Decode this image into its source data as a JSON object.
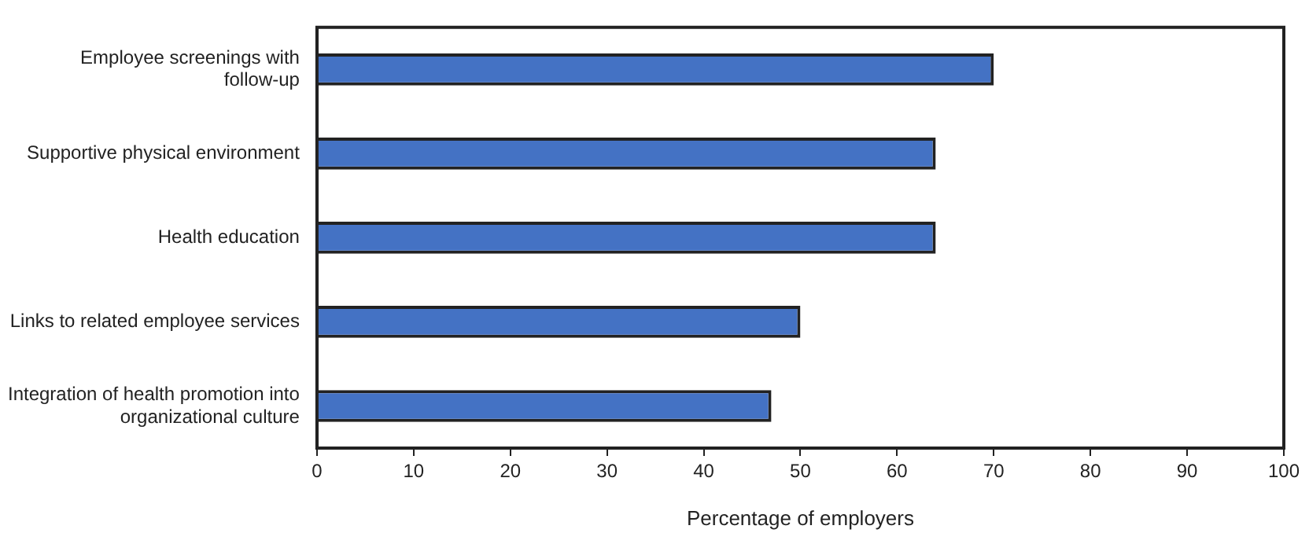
{
  "chart_data": {
    "type": "bar",
    "orientation": "horizontal",
    "xlabel": "Percentage of employers",
    "categories": [
      "Employee screenings with follow-up",
      "Supportive physical environment",
      "Health education",
      "Links to related employee services",
      "Integration of health promotion into organizational culture"
    ],
    "values": [
      70,
      64,
      64,
      50,
      47
    ],
    "color": "#4472c4",
    "xlim": [
      0,
      100
    ],
    "xticks": [
      0,
      10,
      20,
      30,
      40,
      50,
      60,
      70,
      80,
      90,
      100
    ],
    "grid": false,
    "legend": false
  }
}
